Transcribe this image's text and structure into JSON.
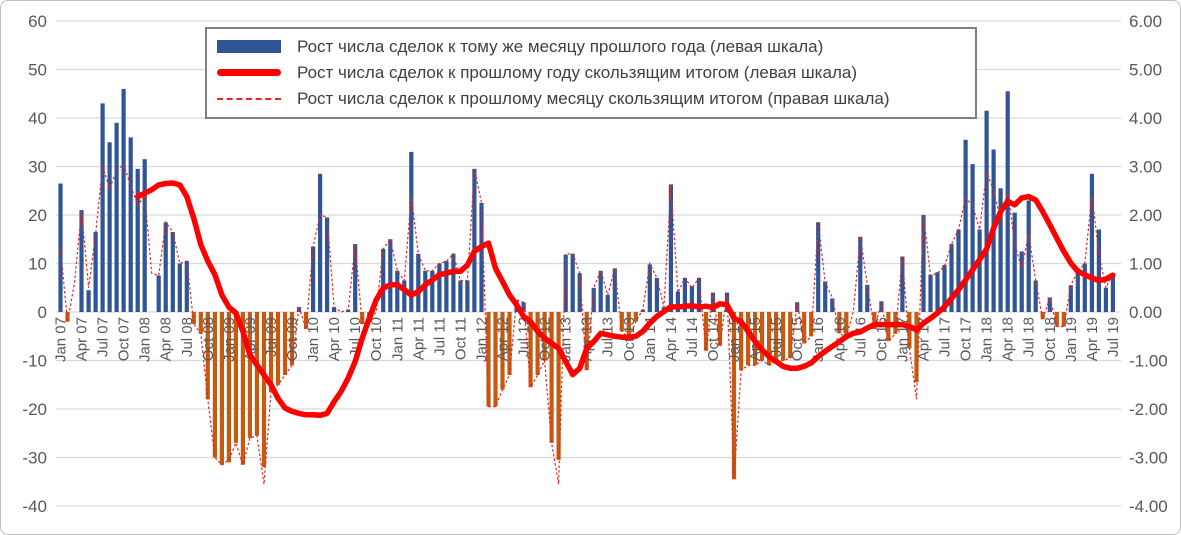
{
  "colors": {
    "bar_positive": "#2F5597",
    "bar_negative": "#C55A11",
    "line_solid": "#FF0000",
    "line_dashed": "#E02A20",
    "gridline": "#D9D9D9",
    "tick_text": "#595959",
    "frame_border": "#BFBFBF",
    "legend_border": "#7F7F7F",
    "legend_text": "#404040"
  },
  "chart_data": {
    "type": "bar",
    "subtype": "combo-bar-line-dualaxis",
    "grid": true,
    "legend_position": "top",
    "x_tick_every": 3,
    "left_axis": {
      "min": -40,
      "max": 60,
      "step": 10,
      "ticks": [
        "60",
        "50",
        "40",
        "30",
        "20",
        "10",
        "0",
        "-10",
        "-20",
        "-30",
        "-40"
      ]
    },
    "right_axis": {
      "min": -4,
      "max": 6,
      "step": 1,
      "ticks": [
        "6.00",
        "5.00",
        "4.00",
        "3.00",
        "2.00",
        "1.00",
        "0.00",
        "-1.00",
        "-2.00",
        "-3.00",
        "-4.00"
      ]
    },
    "months": [
      "Jan 07",
      "Feb 07",
      "Mar 07",
      "Apr 07",
      "May 07",
      "Jun 07",
      "Jul 07",
      "Aug 07",
      "Sep 07",
      "Oct 07",
      "Nov 07",
      "Dec 07",
      "Jan 08",
      "Feb 08",
      "Mar 08",
      "Apr 08",
      "May 08",
      "Jun 08",
      "Jul 08",
      "Aug 08",
      "Sep 08",
      "Oct 08",
      "Nov 08",
      "Dec 08",
      "Jan 09",
      "Feb 09",
      "Mar 09",
      "Apr 09",
      "May 09",
      "Jun 09",
      "Jul 09",
      "Aug 09",
      "Sep 09",
      "Oct 09",
      "Nov 09",
      "Dec 09",
      "Jan 10",
      "Feb 10",
      "Mar 10",
      "Apr 10",
      "May 10",
      "Jun 10",
      "Jul 10",
      "Aug 10",
      "Sep 10",
      "Oct 10",
      "Nov 10",
      "Dec 10",
      "Jan 11",
      "Feb 11",
      "Mar 11",
      "Apr 11",
      "May 11",
      "Jun 11",
      "Jul 11",
      "Aug 11",
      "Sep 11",
      "Oct 11",
      "Nov 11",
      "Dec 11",
      "Jan 12",
      "Feb 12",
      "Mar 12",
      "Apr 12",
      "May 12",
      "Jun 12",
      "Jul 12",
      "Aug 12",
      "Sep 12",
      "Oct 12",
      "Nov 12",
      "Dec 12",
      "Jan 13",
      "Feb 13",
      "Mar 13",
      "Apr 13",
      "May 13",
      "Jun 13",
      "Jul 13",
      "Aug 13",
      "Sep 13",
      "Oct 13",
      "Nov 13",
      "Dec 13",
      "Jan 14",
      "Feb 14",
      "Mar 14",
      "Apr 14",
      "May 14",
      "Jun 14",
      "Jul 14",
      "Aug 14",
      "Sep 14",
      "Oct 14",
      "Nov 14",
      "Dec 14",
      "Jan 15",
      "Feb 15",
      "Mar 15",
      "Apr 15",
      "May 15",
      "Jun 15",
      "Jul 15",
      "Aug 15",
      "Sep 15",
      "Oct 15",
      "Nov 15",
      "Dec 15",
      "Jan 16",
      "Feb 16",
      "Mar 16",
      "Apr 16",
      "May 16",
      "Jun 16",
      "Jul 16",
      "Aug 16",
      "Sep 16",
      "Oct 16",
      "Nov 16",
      "Dec 16",
      "Jan 17",
      "Feb 17",
      "Mar 17",
      "Apr 17",
      "May 17",
      "Jun 17",
      "Jul 17",
      "Aug 17",
      "Sep 17",
      "Oct 17",
      "Nov 17",
      "Dec 17",
      "Jan 18",
      "Feb 18",
      "Mar 18",
      "Apr 18",
      "May 18",
      "Jun 18",
      "Jul 18",
      "Aug 18",
      "Sep 18",
      "Oct 18",
      "Nov 18",
      "Dec 18",
      "Jan 19",
      "Feb 19",
      "Mar 19",
      "Apr 19",
      "May 19",
      "Jun 19",
      "Jul 19"
    ],
    "series": [
      {
        "name": "Рост числа сделок к тому же месяцу прошлого года (левая шкала)",
        "type": "bar",
        "axis": "left",
        "values": [
          26.5,
          -2,
          0,
          21,
          4.5,
          16.5,
          43,
          35,
          39,
          46,
          36,
          29.5,
          31.5,
          0,
          7.5,
          18.5,
          16.5,
          10,
          10.5,
          -2.5,
          -4.5,
          -18,
          -30,
          -31.5,
          -31,
          -27,
          -31.5,
          -26,
          -25.5,
          -32,
          -16.5,
          -15,
          -13,
          -11,
          1,
          -3.5,
          13.5,
          28.5,
          19.5,
          1,
          0,
          0.5,
          14,
          -2.5,
          -2,
          0,
          13,
          15,
          8.5,
          6.5,
          33,
          12,
          8.5,
          8.5,
          10,
          10.5,
          12,
          6.5,
          6.5,
          29.5,
          22.5,
          -19.5,
          -19.5,
          -16,
          -13,
          2.5,
          2,
          -15.5,
          -13,
          -10,
          -27,
          -30.5,
          11.8,
          12,
          8,
          -12,
          5,
          8.5,
          3.5,
          9,
          -4,
          -5.5,
          -2,
          0.5,
          9.8,
          7,
          1,
          26.3,
          4.2,
          7,
          5.3,
          7,
          -8,
          4,
          -7,
          4,
          -34.5,
          -12,
          -11,
          -11,
          -10,
          -11,
          -10,
          -10,
          -9.5,
          2,
          -6.5,
          -5,
          18.5,
          6.3,
          2.8,
          -4.4,
          -4.8,
          0,
          15.5,
          5.6,
          -3.5,
          2.2,
          -6,
          -4.5,
          11.4,
          -7.5,
          -14.5,
          20,
          7.7,
          8.2,
          9.7,
          14,
          17,
          35.5,
          30.5,
          17,
          41.5,
          33.5,
          25.5,
          45.5,
          20.5,
          12.5,
          23,
          6.5,
          -1.5,
          3,
          -3,
          -3,
          5.5,
          8.5,
          10,
          28.5,
          17,
          5,
          8
        ]
      },
      {
        "name": "Рост числа сделок к прошлому году скользящим итогом (левая шкала)",
        "type": "line-solid",
        "axis": "left",
        "values": [
          null,
          null,
          null,
          null,
          null,
          null,
          null,
          null,
          null,
          null,
          null,
          23.8,
          24.5,
          25.2,
          26.2,
          26.5,
          26.6,
          26.2,
          23.8,
          19.3,
          13.9,
          10.5,
          7.7,
          3.5,
          1.0,
          -0.2,
          -4.0,
          -8.8,
          -10.9,
          -13.0,
          -15.0,
          -17.8,
          -19.8,
          -20.5,
          -20.9,
          -21.2,
          -21.2,
          -21.3,
          -20.9,
          -18.5,
          -16.4,
          -13.6,
          -10.2,
          -5.4,
          -1.3,
          2.5,
          4.9,
          5.6,
          5.6,
          4.6,
          3.5,
          4.2,
          5.6,
          6.6,
          7.7,
          8.0,
          8.4,
          8.4,
          9.7,
          12.5,
          13.5,
          14.2,
          9.0,
          6.3,
          3.5,
          1.5,
          -0.9,
          -2.0,
          -4.0,
          -5.4,
          -6.4,
          -7.5,
          -10.2,
          -12.9,
          -11.6,
          -7.5,
          -6.1,
          -4.4,
          -4.7,
          -5.0,
          -5.2,
          -5.2,
          -5.0,
          -4.0,
          -2.3,
          -0.9,
          0.1,
          1.1,
          1.0,
          1.2,
          1.3,
          1.0,
          1.2,
          0.9,
          1.7,
          1.5,
          -1.3,
          -2.0,
          -4.0,
          -6.1,
          -7.8,
          -9.2,
          -10.2,
          -11.2,
          -11.6,
          -11.6,
          -11.2,
          -10.5,
          -9.2,
          -8.1,
          -7.1,
          -6.1,
          -5.1,
          -4.4,
          -4.1,
          -3.3,
          -2.6,
          -2.6,
          -2.6,
          -2.6,
          -2.6,
          -3.0,
          -3.7,
          -2.3,
          -1.3,
          -0.2,
          1.1,
          2.8,
          4.6,
          6.6,
          8.7,
          10.8,
          13.0,
          17.3,
          20.7,
          22.8,
          22.1,
          23.5,
          23.8,
          23.1,
          20.7,
          18.0,
          15.2,
          12.5,
          10.1,
          8.4,
          7.7,
          7.0,
          6.5,
          6.8,
          7.6
        ]
      },
      {
        "name": "Рост числа сделок к прошлому месяцу скользящим итогом (правая шкала)",
        "type": "line-dashed",
        "axis": "right",
        "values": [
          1.3,
          -0.2,
          0.6,
          2.1,
          0.5,
          1.6,
          3.0,
          2.55,
          2.9,
          3.05,
          2.6,
          2.2,
          2.4,
          0.8,
          0.75,
          1.85,
          1.65,
          1.0,
          1.05,
          -0.25,
          -0.45,
          -1.8,
          -3.0,
          -3.15,
          -3.05,
          -2.7,
          -3.15,
          -2.6,
          -2.55,
          -3.55,
          -1.65,
          -1.5,
          -1.3,
          -1.1,
          0.1,
          -0.35,
          1.35,
          2.0,
          1.95,
          0.1,
          0.0,
          0.05,
          1.4,
          -0.25,
          -0.2,
          0.0,
          1.3,
          1.5,
          0.85,
          0.65,
          2.4,
          1.2,
          0.85,
          0.85,
          1.0,
          1.05,
          1.2,
          0.65,
          0.65,
          2.95,
          2.25,
          -1.95,
          -1.95,
          -1.6,
          -1.3,
          0.25,
          0.2,
          -1.55,
          -1.3,
          -1.0,
          -2.7,
          -3.55,
          1.2,
          1.2,
          0.8,
          -1.2,
          0.5,
          0.85,
          0.35,
          0.9,
          -0.4,
          -0.55,
          -0.2,
          0.05,
          1.0,
          0.7,
          0.1,
          2.6,
          0.4,
          0.7,
          0.5,
          0.7,
          -0.8,
          0.4,
          -0.7,
          0.4,
          -3.45,
          -1.2,
          -1.1,
          -1.1,
          -1.0,
          -1.1,
          -1.0,
          -1.0,
          -0.95,
          0.2,
          -0.65,
          -0.5,
          1.85,
          0.6,
          0.3,
          -0.45,
          -0.5,
          0.0,
          1.55,
          0.55,
          -0.35,
          0.2,
          -0.6,
          -0.45,
          1.15,
          -0.75,
          -1.8,
          2.0,
          0.75,
          0.8,
          0.95,
          1.4,
          1.7,
          2.35,
          2.2,
          1.7,
          2.9,
          2.5,
          1.9,
          2.5,
          1.4,
          0.9,
          1.6,
          0.65,
          -0.15,
          0.3,
          -0.3,
          -0.3,
          0.55,
          0.85,
          1.0,
          2.4,
          1.2,
          0.5,
          0.8
        ]
      }
    ]
  }
}
